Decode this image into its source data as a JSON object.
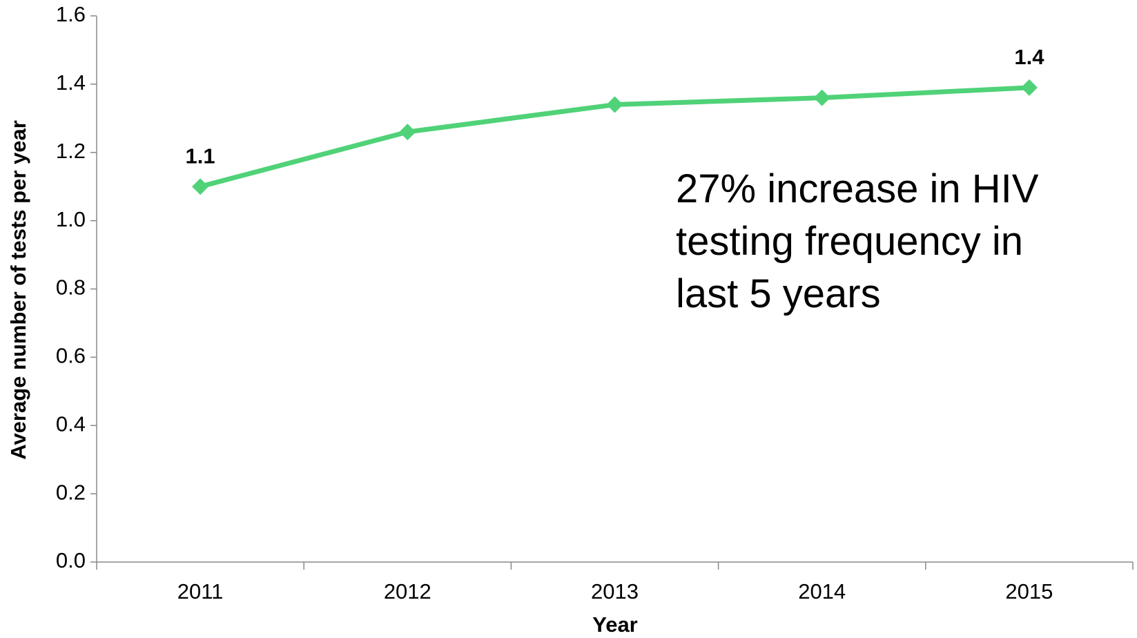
{
  "chart_data": {
    "type": "line",
    "categories": [
      "2011",
      "2012",
      "2013",
      "2014",
      "2015"
    ],
    "series": [
      {
        "name": "Average number of tests per year",
        "color": "#50d278",
        "values": [
          1.1,
          1.26,
          1.34,
          1.36,
          1.39
        ],
        "value_labels": [
          "1.1",
          null,
          null,
          null,
          "1.4"
        ]
      }
    ],
    "x_label": "Year",
    "y_label": "Average number of tests per year",
    "ylim": [
      0,
      1.6
    ],
    "yticks": [
      {
        "value": 0,
        "label": "0.0"
      },
      0.2,
      0.4,
      0.6,
      0.8,
      {
        "value": 1,
        "label": "1.0"
      },
      1.2,
      1.4,
      1.6
    ],
    "annotation": [
      "27% increase in HIV",
      "testing frequency in",
      "last 5 years"
    ],
    "grid": false
  }
}
